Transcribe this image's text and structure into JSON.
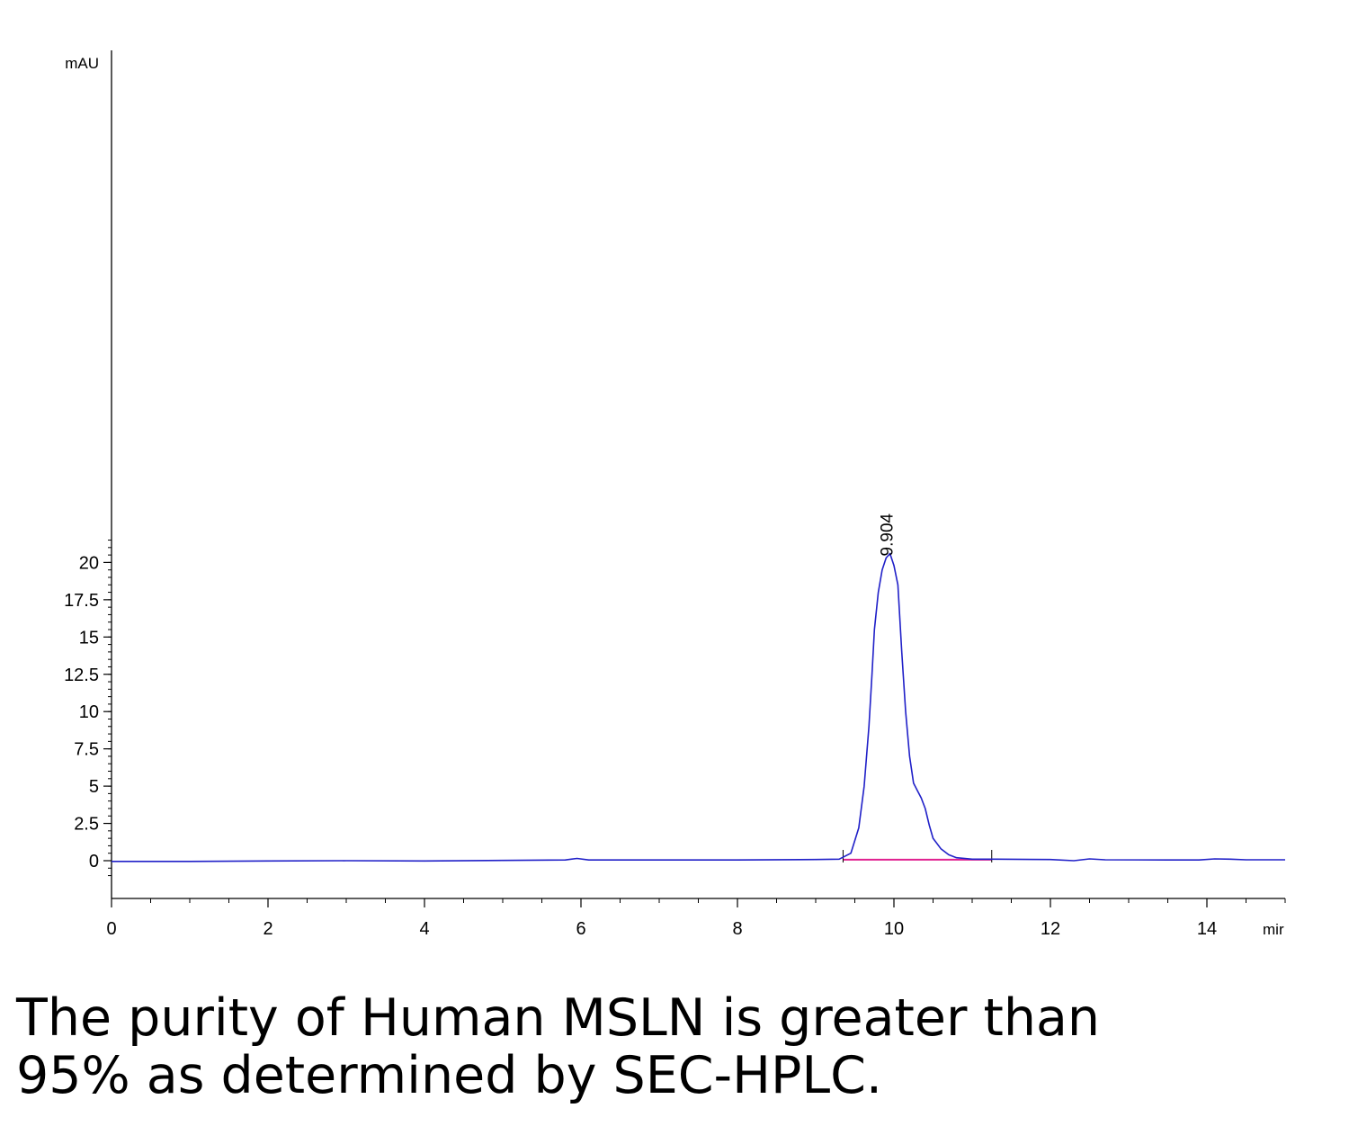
{
  "chart_data": {
    "type": "line",
    "ylabel": "mAU",
    "xlabel": "mir",
    "xlim": [
      0,
      15
    ],
    "ylim": [
      -1,
      21.5
    ],
    "x_ticks": [
      0,
      2,
      4,
      6,
      8,
      10,
      12,
      14
    ],
    "y_ticks": [
      0,
      2.5,
      5,
      7.5,
      10,
      12.5,
      15,
      17.5,
      20
    ],
    "x_tick_labels": [
      "0",
      "2",
      "4",
      "6",
      "8",
      "10",
      "12",
      "14"
    ],
    "y_tick_labels": [
      "0",
      "2.5",
      "5",
      "7.5",
      "10",
      "12.5",
      "15",
      "17.5",
      "20"
    ],
    "grid": false,
    "series": [
      {
        "color": "#2020c8",
        "x": [
          0,
          1,
          2,
          3,
          4,
          5,
          5.8,
          5.95,
          6.1,
          7,
          8,
          9,
          9.3,
          9.45,
          9.55,
          9.62,
          9.68,
          9.72,
          9.75,
          9.8,
          9.85,
          9.9,
          9.95,
          10.0,
          10.05,
          10.1,
          10.15,
          10.2,
          10.25,
          10.3,
          10.35,
          10.4,
          10.45,
          10.5,
          10.6,
          10.7,
          10.8,
          11.0,
          11.3,
          12.0,
          12.3,
          12.5,
          12.7,
          13.5,
          13.9,
          14.1,
          14.3,
          14.5,
          15.0
        ],
        "y": [
          -0.05,
          -0.05,
          -0.02,
          0.0,
          -0.02,
          0.02,
          0.05,
          0.15,
          0.05,
          0.05,
          0.05,
          0.08,
          0.1,
          0.5,
          2.2,
          5.0,
          9.0,
          12.5,
          15.5,
          18.0,
          19.5,
          20.3,
          20.6,
          19.8,
          18.5,
          14.0,
          10.0,
          7.0,
          5.2,
          4.7,
          4.2,
          3.5,
          2.4,
          1.5,
          0.8,
          0.4,
          0.2,
          0.1,
          0.1,
          0.08,
          0.0,
          0.12,
          0.06,
          0.05,
          0.05,
          0.12,
          0.1,
          0.06,
          0.06
        ]
      }
    ],
    "baseline": {
      "color": "#e02090",
      "x": [
        9.35,
        11.25
      ],
      "y": [
        0.07,
        0.07
      ]
    },
    "integration_marks": [
      9.35,
      11.25
    ],
    "annotations": [
      {
        "text": "9.904",
        "x": 9.904,
        "y": 20.6
      }
    ]
  },
  "caption": {
    "line1": "The purity of Human MSLN is greater than",
    "line2": "95% as determined by SEC-HPLC."
  }
}
